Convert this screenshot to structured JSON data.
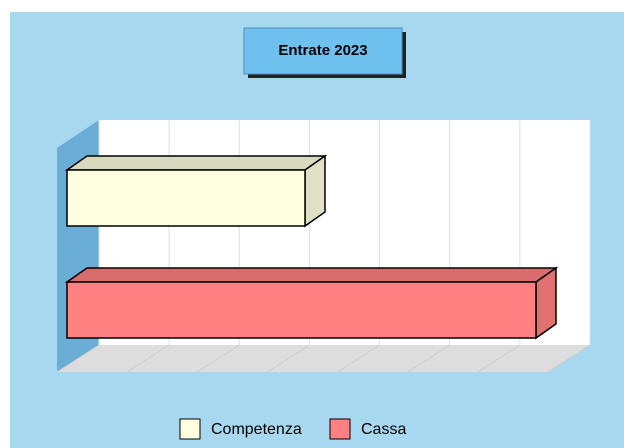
{
  "chart_data": {
    "type": "bar3d",
    "title": "Entrate 2023",
    "series": [
      {
        "name": "Competenza",
        "color": "#ffffe0",
        "values": [
          3.4
        ]
      },
      {
        "name": "Cassa",
        "color": "#ff8080",
        "values": [
          6.7
        ]
      }
    ],
    "xlim": [
      0,
      7
    ],
    "xticks": [
      0,
      1,
      2,
      3,
      4,
      5,
      6,
      7
    ],
    "grid": true,
    "legend": "bottom"
  }
}
